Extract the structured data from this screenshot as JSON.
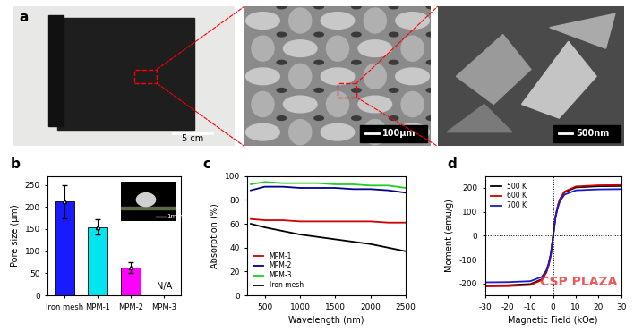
{
  "panel_a": {
    "label": "a",
    "images": [
      {
        "scale_bar": "5 cm"
      },
      {
        "scale_bar": "100μm"
      },
      {
        "scale_bar": "500nm"
      }
    ]
  },
  "watermark": "CSP PLAZA",
  "chart_data": [
    {
      "title": "b",
      "type": "bar",
      "categories": [
        "Iron mesh",
        "MPM-1",
        "MPM-2",
        "MPM-3"
      ],
      "values": [
        212,
        155,
        63,
        null
      ],
      "errors": [
        38,
        18,
        12,
        null
      ],
      "value_labels": [
        null,
        null,
        null,
        "N/A"
      ],
      "colors": [
        "#1a1aff",
        "#00e5ee",
        "#ff00ff",
        "#808080"
      ],
      "ylabel": "Pore size (μm)",
      "ylim": [
        0,
        270
      ],
      "yticks": [
        0,
        50,
        100,
        150,
        200,
        250
      ],
      "inset_scale_bar": "1mm"
    },
    {
      "title": "c",
      "type": "line",
      "xlabel": "Wavelength (nm)",
      "ylabel": "Absorption (%)",
      "x": [
        300,
        500,
        750,
        1000,
        1250,
        1500,
        1750,
        2000,
        2250,
        2500
      ],
      "xlim": [
        250,
        2500
      ],
      "xticks": [
        500,
        1000,
        1500,
        2000,
        2500
      ],
      "ylim": [
        0,
        100
      ],
      "yticks": [
        0,
        20,
        40,
        60,
        80,
        100
      ],
      "legend": "lower left",
      "series": [
        {
          "name": "MPM-1",
          "color": "#cc0000",
          "values": [
            64,
            63,
            63,
            62,
            62,
            62,
            62,
            62,
            61,
            61
          ]
        },
        {
          "name": "MPM-2",
          "color": "#00008b",
          "values": [
            88,
            91,
            91,
            90,
            90,
            90,
            89,
            89,
            88,
            86
          ]
        },
        {
          "name": "MPM-3",
          "color": "#22cc22",
          "values": [
            93,
            95,
            94,
            94,
            94,
            93,
            93,
            92,
            92,
            90
          ]
        },
        {
          "name": "Iron mesh",
          "color": "#000000",
          "values": [
            60,
            57,
            54,
            51,
            49,
            47,
            45,
            43,
            40,
            37
          ]
        }
      ]
    },
    {
      "title": "d",
      "type": "line",
      "xlabel": "Magnetic Field (kOe)",
      "ylabel": "Moment (emu/g)",
      "x": [
        -30,
        -20,
        -10,
        -5,
        -3,
        -2,
        -1,
        0,
        1,
        2,
        3,
        5,
        10,
        20,
        30
      ],
      "xlim": [
        -30,
        30
      ],
      "xticks": [
        -30,
        -20,
        -10,
        0,
        10,
        20,
        30
      ],
      "ylim": [
        -250,
        250
      ],
      "yticks": [
        -200,
        -100,
        0,
        100,
        200
      ],
      "legend": "upper left",
      "series": [
        {
          "name": "500 K",
          "color": "#000000",
          "values": [
            -208,
            -207,
            -202,
            -182,
            -152,
            -122,
            -78,
            0,
            78,
            122,
            152,
            182,
            202,
            207,
            208
          ]
        },
        {
          "name": "600 K",
          "color": "#cc0000",
          "values": [
            -212,
            -211,
            -206,
            -185,
            -154,
            -124,
            -80,
            0,
            80,
            124,
            154,
            185,
            206,
            211,
            212
          ]
        },
        {
          "name": "700 K",
          "color": "#1a1acc",
          "values": [
            -195,
            -194,
            -190,
            -172,
            -145,
            -116,
            -74,
            0,
            74,
            116,
            145,
            172,
            190,
            194,
            195
          ]
        }
      ]
    }
  ]
}
